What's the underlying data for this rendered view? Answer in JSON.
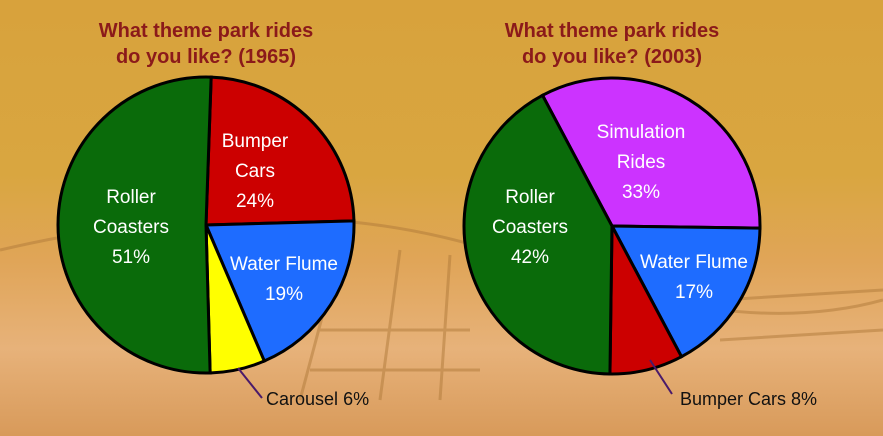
{
  "chart_data": [
    {
      "type": "pie",
      "title": "What theme park rides\ndo you like?  (1965)",
      "categories": [
        "Bumper Cars",
        "Water Flume",
        "Carousel",
        "Roller Coasters"
      ],
      "values": [
        24,
        19,
        6,
        51
      ],
      "value_labels": [
        "24%",
        "19%",
        "6%",
        "51%"
      ],
      "colors": [
        "#cc0000",
        "#1e6cff",
        "#ffff00",
        "#0a6b0a"
      ]
    },
    {
      "type": "pie",
      "title": "What theme park rides\ndo you like?  (2003)",
      "categories": [
        "Simulation Rides",
        "Water Flume",
        "Bumper Cars",
        "Roller Coasters"
      ],
      "values": [
        33,
        17,
        8,
        42
      ],
      "value_labels": [
        "33%",
        "17%",
        "8%",
        "42%"
      ],
      "colors": [
        "#cc33ff",
        "#1e6cff",
        "#cc0000",
        "#0a6b0a"
      ]
    }
  ]
}
